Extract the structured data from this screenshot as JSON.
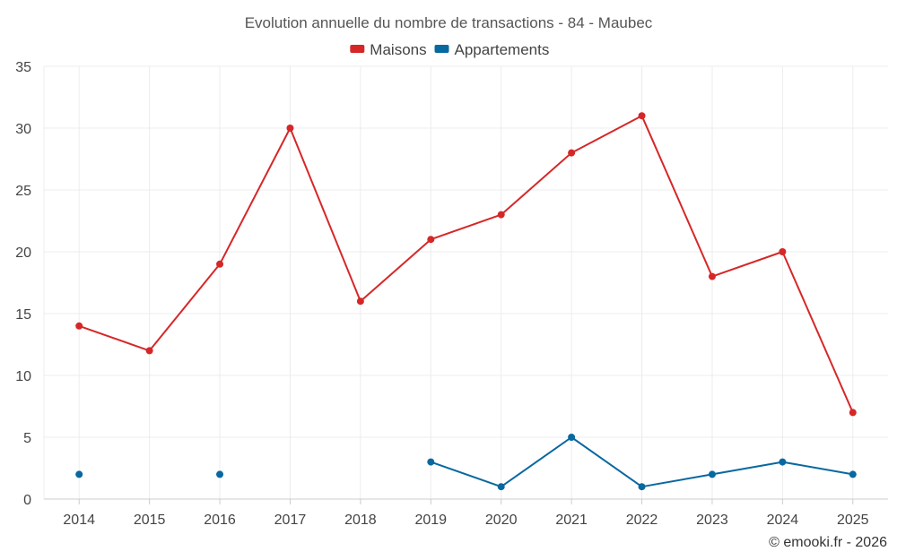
{
  "chart_data": {
    "type": "line",
    "title": "Evolution annuelle du nombre de transactions - 84 - Maubec",
    "categories": [
      "2014",
      "2015",
      "2016",
      "2017",
      "2018",
      "2019",
      "2020",
      "2021",
      "2022",
      "2023",
      "2024",
      "2025"
    ],
    "series": [
      {
        "name": "Maisons",
        "color": "#d62728",
        "values": [
          14,
          12,
          19,
          30,
          16,
          21,
          23,
          28,
          31,
          18,
          20,
          7
        ]
      },
      {
        "name": "Appartements",
        "color": "#0868a0",
        "values": [
          2,
          null,
          2,
          null,
          null,
          3,
          1,
          5,
          1,
          2,
          3,
          2
        ]
      }
    ],
    "ylim": [
      0,
      35
    ],
    "yticks": [
      0,
      5,
      10,
      15,
      20,
      25,
      30,
      35
    ],
    "xlabel": "",
    "ylabel": "",
    "grid": true,
    "legend": "top-center"
  },
  "credit": "© emooki.fr - 2026"
}
